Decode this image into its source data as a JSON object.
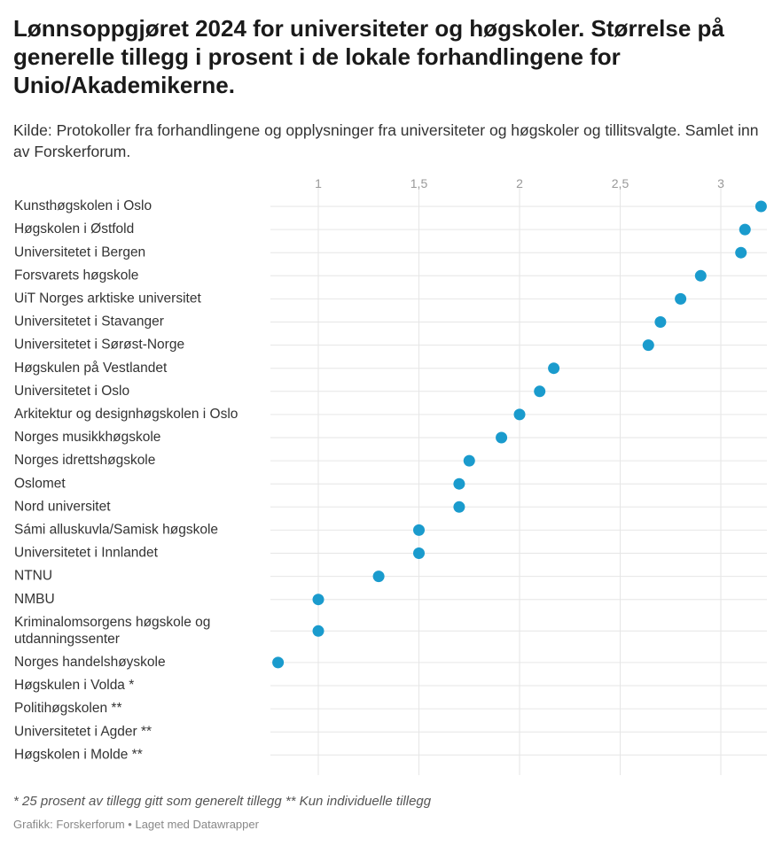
{
  "header": {
    "title": "Lønnsoppgjøret 2024 for universiteter og høgskoler. Størrelse på generelle tillegg i prosent i de lokale forhandlingene for Unio/Akademikerne.",
    "subtitle": "Kilde: Protokoller fra forhandlingene og opplysninger fra universiteter og høgskoler og tillitsvalgte. Samlet inn av Forskerforum."
  },
  "footer": {
    "note": "* 25 prosent av tillegg gitt som generelt tillegg ** Kun individuelle tillegg",
    "credit_source": "Grafikk: Forskerforum",
    "credit_sep": " • ",
    "credit_tool": "Laget med Datawrapper"
  },
  "chart_data": {
    "type": "scatter",
    "title": "Lønnsoppgjøret 2024 for universiteter og høgskoler. Størrelse på generelle tillegg i prosent i de lokale forhandlingene for Unio/Akademikerne.",
    "xlabel": "",
    "ylabel": "",
    "xlim": [
      0.8,
      3.25
    ],
    "ticks": [
      {
        "value": 1,
        "label": "1"
      },
      {
        "value": 1.5,
        "label": "1,5"
      },
      {
        "value": 2,
        "label": "2"
      },
      {
        "value": 2.5,
        "label": "2,5"
      },
      {
        "value": 3,
        "label": "3"
      }
    ],
    "grid": true,
    "dot_color": "#1a9bcd",
    "grid_color": "#e6e6e6",
    "rows": [
      {
        "label": "Kunsthøgskolen i Oslo",
        "value": 3.2
      },
      {
        "label": "Høgskolen i Østfold",
        "value": 3.12
      },
      {
        "label": "Universitetet i Bergen",
        "value": 3.1
      },
      {
        "label": "Forsvarets høgskole",
        "value": 2.9
      },
      {
        "label": "UiT Norges arktiske universitet",
        "value": 2.8
      },
      {
        "label": "Universitetet i Stavanger",
        "value": 2.7
      },
      {
        "label": "Universitetet i Sørøst-Norge",
        "value": 2.64
      },
      {
        "label": "Høgskulen på Vestlandet",
        "value": 2.17
      },
      {
        "label": "Universitetet i Oslo",
        "value": 2.1
      },
      {
        "label": "Arkitektur og designhøgskolen i Oslo",
        "value": 2.0
      },
      {
        "label": "Norges musikkhøgskole",
        "value": 1.91
      },
      {
        "label": "Norges idrettshøgskole",
        "value": 1.75
      },
      {
        "label": "Oslomet",
        "value": 1.7
      },
      {
        "label": "Nord universitet",
        "value": 1.7
      },
      {
        "label": "Sámi alluskuvla/Samisk høgskole",
        "value": 1.5
      },
      {
        "label": "Universitetet i Innlandet",
        "value": 1.5
      },
      {
        "label": "NTNU",
        "value": 1.3
      },
      {
        "label": "NMBU",
        "value": 1.0
      },
      {
        "label": [
          "Kriminalomsorgens høgskole og",
          "utdanningssenter"
        ],
        "value": 1.0
      },
      {
        "label": "Norges handelshøyskole",
        "value": 0.8
      },
      {
        "label": "Høgskulen i Volda *",
        "value": null
      },
      {
        "label": "Politihøgskolen **",
        "value": null
      },
      {
        "label": "Universitetet i Agder **",
        "value": null
      },
      {
        "label": "Høgskolen i Molde **",
        "value": null
      }
    ]
  }
}
